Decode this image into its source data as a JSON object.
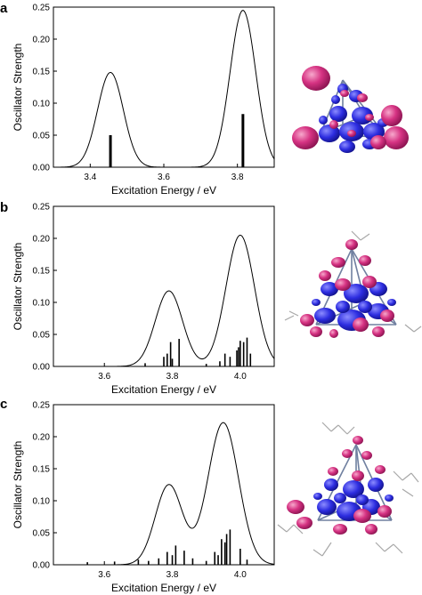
{
  "colors": {
    "curve": "#000000",
    "stick": "#000000",
    "lobe_pos": "#d02878",
    "lobe_neg": "#2a2ad8",
    "frame": "#7080a0",
    "alkyl": "#a8a8a8"
  },
  "chart_data": [
    {
      "id": "a",
      "type": "line",
      "panel_label": "a",
      "xlabel": "Excitation Energy / eV",
      "ylabel": "Oscillator Strength",
      "xlim": [
        3.3,
        3.9
      ],
      "ylim": [
        0,
        0.25
      ],
      "xticks": [
        "3.4",
        "3.6",
        "3.8"
      ],
      "yticks": [
        "0.00",
        "0.05",
        "0.10",
        "0.15",
        "0.20",
        "0.25"
      ],
      "xtick_values": [
        3.4,
        3.6,
        3.8
      ],
      "ytick_values": [
        0,
        0.05,
        0.1,
        0.15,
        0.2,
        0.25
      ],
      "series": [
        {
          "kind": "curve",
          "peaks": [
            {
              "x": 3.455,
              "height": 0.148,
              "width": 0.035
            },
            {
              "x": 3.815,
              "height": 0.245,
              "width": 0.035
            }
          ]
        },
        {
          "kind": "sticks",
          "x": [
            3.455,
            3.815
          ],
          "values": [
            0.05,
            0.083
          ]
        }
      ]
    },
    {
      "id": "b",
      "type": "line",
      "panel_label": "b",
      "xlabel": "Excitation Energy / eV",
      "ylabel": "Oscillator Strength",
      "xlim": [
        3.45,
        4.1
      ],
      "ylim": [
        0,
        0.25
      ],
      "xticks": [
        "3.6",
        "3.8",
        "4.0"
      ],
      "yticks": [
        "0.00",
        "0.05",
        "0.10",
        "0.15",
        "0.20",
        "0.25"
      ],
      "xtick_values": [
        3.6,
        3.8,
        4.0
      ],
      "ytick_values": [
        0,
        0.05,
        0.1,
        0.15,
        0.2,
        0.25
      ],
      "series": [
        {
          "kind": "curve",
          "peaks": [
            {
              "x": 3.79,
              "height": 0.118,
              "width": 0.04
            },
            {
              "x": 4.0,
              "height": 0.205,
              "width": 0.042
            }
          ]
        },
        {
          "kind": "sticks",
          "x": [
            3.72,
            3.775,
            3.785,
            3.795,
            3.8,
            3.82,
            3.9,
            3.94,
            3.955,
            3.97,
            3.99,
            3.995,
            4.0,
            4.01,
            4.02,
            4.03
          ],
          "values": [
            0.005,
            0.015,
            0.02,
            0.038,
            0.012,
            0.043,
            0.004,
            0.008,
            0.02,
            0.015,
            0.025,
            0.03,
            0.04,
            0.038,
            0.045,
            0.02
          ]
        }
      ]
    },
    {
      "id": "c",
      "type": "line",
      "panel_label": "c",
      "xlabel": "Excitation Energy / eV",
      "ylabel": "Oscillator Strength",
      "xlim": [
        3.45,
        4.1
      ],
      "ylim": [
        0,
        0.25
      ],
      "xticks": [
        "3.6",
        "3.8",
        "4.0"
      ],
      "yticks": [
        "0.00",
        "0.05",
        "0.10",
        "0.15",
        "0.20",
        "0.25"
      ],
      "xtick_values": [
        3.6,
        3.8,
        4.0
      ],
      "ytick_values": [
        0,
        0.05,
        0.1,
        0.15,
        0.2,
        0.25
      ],
      "series": [
        {
          "kind": "curve",
          "peaks": [
            {
              "x": 3.79,
              "height": 0.125,
              "width": 0.04
            },
            {
              "x": 3.95,
              "height": 0.222,
              "width": 0.045
            }
          ]
        },
        {
          "kind": "sticks",
          "x": [
            3.55,
            3.63,
            3.7,
            3.73,
            3.76,
            3.785,
            3.8,
            3.81,
            3.835,
            3.86,
            3.9,
            3.925,
            3.935,
            3.945,
            3.955,
            3.96,
            3.97,
            4.0,
            4.02
          ],
          "values": [
            0.004,
            0.005,
            0.008,
            0.006,
            0.01,
            0.02,
            0.015,
            0.03,
            0.022,
            0.01,
            0.006,
            0.02,
            0.015,
            0.04,
            0.035,
            0.048,
            0.055,
            0.025,
            0.008
          ]
        }
      ]
    }
  ]
}
